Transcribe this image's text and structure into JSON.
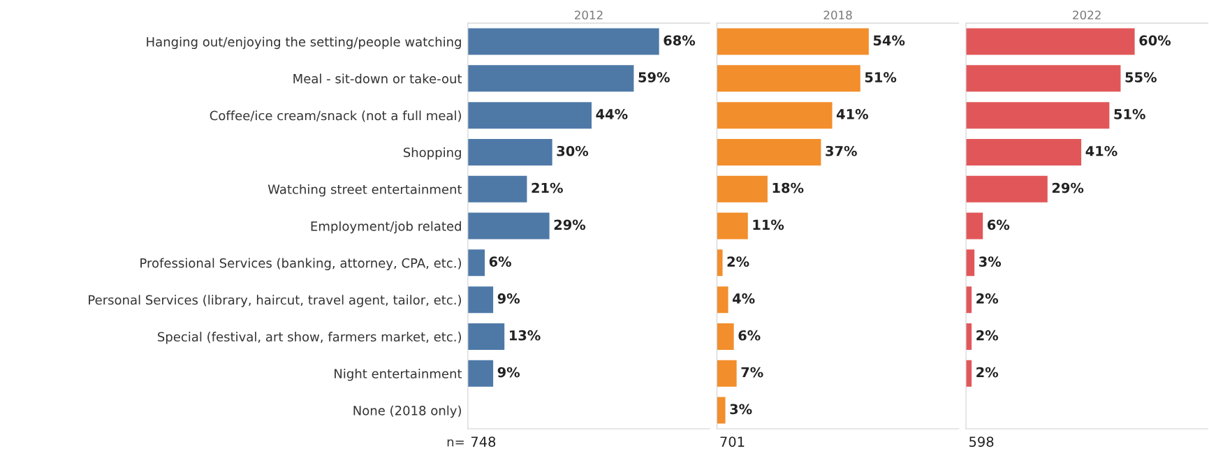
{
  "chart_data": [
    {
      "type": "bar",
      "orientation": "horizontal",
      "title": "2012",
      "categories": [
        "Hanging out/enjoying the setting/people watching",
        "Meal - sit-down or take-out",
        "Coffee/ice cream/snack (not a full meal)",
        "Shopping",
        "Watching street entertainment",
        "Employment/job related",
        "Professional Services (banking, attorney, CPA, etc.)",
        "Personal Services (library, haircut, travel agent, tailor, etc.)",
        "Special (festival, art show, farmers market, etc.)",
        "Night entertainment",
        "None (2018 only)"
      ],
      "values": [
        68,
        59,
        44,
        30,
        21,
        29,
        6,
        9,
        13,
        9,
        null
      ],
      "value_labels": [
        "68%",
        "59%",
        "44%",
        "30%",
        "21%",
        "29%",
        "6%",
        "9%",
        "13%",
        "9%",
        null
      ],
      "color": "#4e79a7",
      "xlim": [
        0,
        86
      ],
      "tick_labels": "y",
      "grid": false,
      "legend": false,
      "annotations": [
        "n=",
        "748"
      ]
    },
    {
      "type": "bar",
      "orientation": "horizontal",
      "title": "2018",
      "categories": [
        null,
        null,
        null,
        null,
        null,
        null,
        null,
        null,
        null,
        null,
        null
      ],
      "values": [
        54,
        51,
        41,
        37,
        18,
        11,
        2,
        4,
        6,
        7,
        3
      ],
      "value_labels": [
        "54%",
        "51%",
        "41%",
        "37%",
        "18%",
        "11%",
        "2%",
        "4%",
        "6%",
        "7%",
        "3%"
      ],
      "color": "#f28e2b",
      "xlim": [
        0,
        86
      ],
      "tick_labels": false,
      "grid": false,
      "legend": false,
      "annotations": [
        "701"
      ]
    },
    {
      "type": "bar",
      "orientation": "horizontal",
      "title": "2022",
      "categories": [
        null,
        null,
        null,
        null,
        null,
        null,
        null,
        null,
        null,
        null,
        null
      ],
      "values": [
        60,
        55,
        51,
        41,
        29,
        6,
        3,
        2,
        2,
        2,
        null
      ],
      "value_labels": [
        "60%",
        "55%",
        "51%",
        "41%",
        "29%",
        "6%",
        "3%",
        "2%",
        "2%",
        "2%",
        null
      ],
      "color": "#e15759",
      "xlim": [
        0,
        86
      ],
      "tick_labels": false,
      "grid": false,
      "legend": false,
      "annotations": [
        "598"
      ]
    }
  ]
}
